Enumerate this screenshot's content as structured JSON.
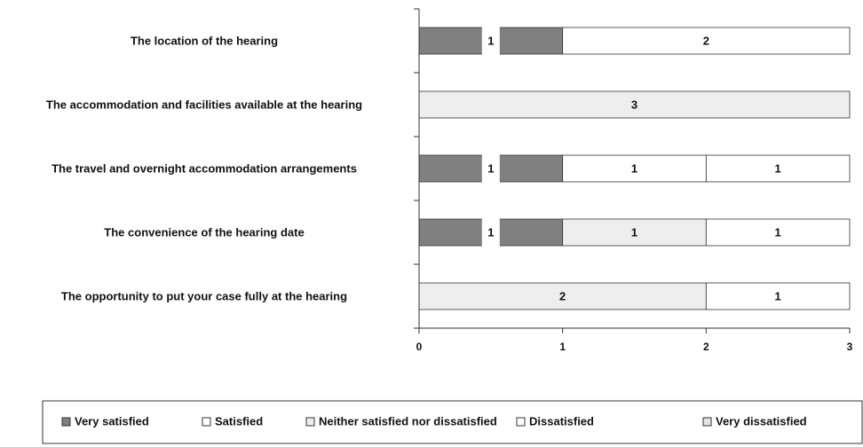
{
  "chart_data": {
    "type": "stacked-bar-horizontal",
    "categories": [
      "The location of the hearing",
      "The accommodation and facilities available at the hearing",
      "The travel and overnight accommodation arrangements",
      "The convenience of the hearing date",
      "The opportunity to put your case fully at the hearing"
    ],
    "series": [
      {
        "name": "Very satisfied",
        "color": "#808080",
        "values": [
          1,
          null,
          1,
          1,
          null
        ]
      },
      {
        "name": "Satisfied",
        "color": "#ffffff",
        "values": [
          2,
          null,
          1,
          null,
          null
        ]
      },
      {
        "name": "Neither satisfied nor dissatisfied",
        "color": "#eeeeee",
        "values": [
          null,
          3,
          null,
          1,
          2
        ]
      },
      {
        "name": "Dissatisfied",
        "color": "#ffffff",
        "values": [
          null,
          null,
          1,
          1,
          1
        ]
      },
      {
        "name": "Very dissatisfied",
        "color": "#e4e4e4",
        "values": [
          null,
          null,
          null,
          null,
          null
        ]
      }
    ],
    "xlim": [
      0,
      3
    ],
    "xticks": [
      0,
      1,
      2,
      3
    ],
    "legend": "bottom"
  }
}
